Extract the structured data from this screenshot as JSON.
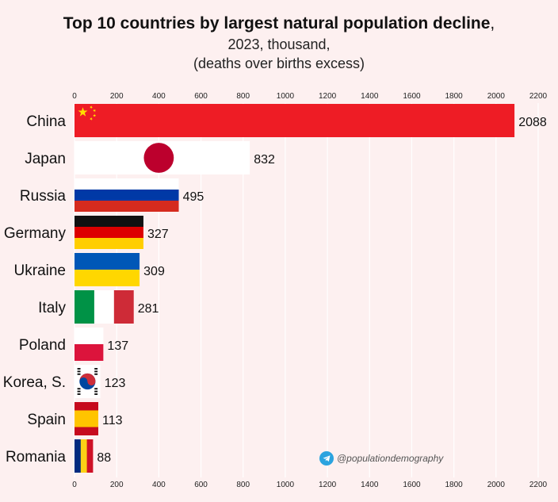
{
  "chart_data": {
    "type": "bar",
    "orientation": "horizontal",
    "title": "Top 10 countries by largest natural population decline",
    "title_suffix": ",",
    "subtitle_line1": "2023, thousand,",
    "subtitle_line2": "(deaths over births excess)",
    "categories": [
      "China",
      "Japan",
      "Russia",
      "Germany",
      "Ukraine",
      "Italy",
      "Poland",
      "Korea, S.",
      "Spain",
      "Romania"
    ],
    "values": [
      2088,
      832,
      495,
      327,
      309,
      281,
      137,
      123,
      113,
      88
    ],
    "value_labels": [
      "2088",
      "832",
      "495",
      "327",
      "309",
      "281",
      "137",
      "123",
      "113",
      "88"
    ],
    "xlim": [
      0,
      2200
    ],
    "xticks": [
      0,
      200,
      400,
      600,
      800,
      1000,
      1200,
      1400,
      1600,
      1800,
      2000,
      2200
    ],
    "xtick_labels": [
      "0",
      "200",
      "400",
      "600",
      "800",
      "1000",
      "1200",
      "1400",
      "1600",
      "1800",
      "2000",
      "2200"
    ],
    "axis_ticks_position": "top and bottom",
    "grid": true,
    "bar_fill": "national flags",
    "colors": {
      "background": "#fdf0f0",
      "grid": "#ffffff",
      "red": "#ee1c25",
      "gold": "#ffde00",
      "blue": "#0039a6",
      "black": "#111111",
      "white": "#ffffff"
    }
  },
  "watermark": {
    "icon": "telegram-icon",
    "text": "@populationdemography"
  }
}
